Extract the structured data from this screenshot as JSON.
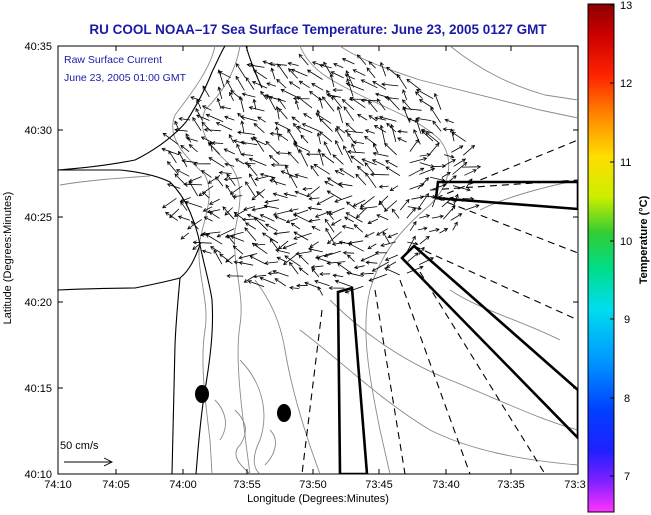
{
  "title": "RU COOL  NOAA–17  Sea Surface Temperature:  June 23, 2005 0127 GMT",
  "annotation": {
    "line1": "Raw Surface Current",
    "line2": "June 23, 2005 01:00 GMT"
  },
  "scale_label": "50 cm/s",
  "x_axis": {
    "label": "Longitude (Degrees:Minutes)",
    "ticks": [
      "74:10",
      "74:05",
      "74:00",
      "73:55",
      "73:50",
      "73:45",
      "73:40",
      "73:35",
      "73:3"
    ]
  },
  "y_axis": {
    "label": "Latitude (Degrees:Minutes)",
    "ticks": [
      "40:35",
      "40:30",
      "40:25",
      "40:20",
      "40:15",
      "40:10"
    ]
  },
  "colorbar": {
    "label": "Temperature (°C)",
    "ticks": [
      "13",
      "12",
      "11",
      "10",
      "9",
      "8",
      "7"
    ],
    "colors": [
      "#ff33ff",
      "#8020ff",
      "#1010ff",
      "#0099ff",
      "#00ddee",
      "#00dd88",
      "#33cc33",
      "#ccee00",
      "#ffdd00",
      "#ff8800",
      "#ff2200",
      "#cc0000",
      "#8a0000"
    ]
  },
  "colors": {
    "title": "#1a1aa8",
    "contour": "#8a8a8a",
    "coast": "#000000"
  }
}
